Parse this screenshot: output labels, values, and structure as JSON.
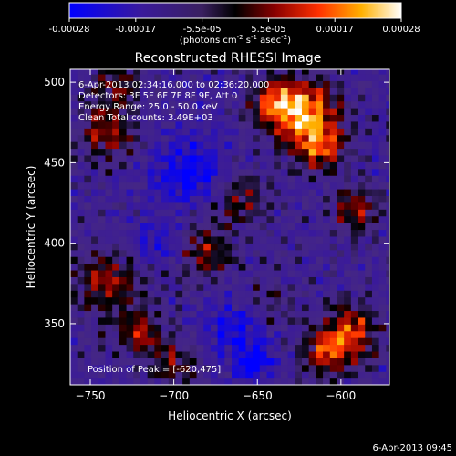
{
  "chart_data": {
    "type": "heatmap",
    "title": "Reconstructed RHESSI Image",
    "xlabel": "Heliocentric X (arcsec)",
    "ylabel": "Heliocentric Y (arcsec)",
    "xlim": [
      -762,
      -571
    ],
    "ylim": [
      312,
      508
    ],
    "x_ticks": [
      -750,
      -700,
      -650,
      -600
    ],
    "y_ticks": [
      350,
      400,
      450,
      500
    ],
    "colorbar": {
      "range": [
        -0.00028,
        0.00028
      ],
      "ticks": [
        "-0.00028",
        "-0.00017",
        "-5.5e-05",
        "5.5e-05",
        "0.00017",
        "0.00028"
      ],
      "unit_label": "(photons cm",
      "unit_sup1": "-2",
      "unit_mid": " s",
      "unit_sup2": "-1",
      "unit_mid2": " asec",
      "unit_sup3": "-2",
      "unit_end": ")"
    },
    "annotations": [
      "6-Apr-2013 02:34:16.000 to 02:36:20.000",
      "Detectors: 3F 5F 6F 7F 8F 9F, Att 0",
      "Energy Range: 25.0 - 50.0 keV",
      "Clean    Total counts: 3.49E+03"
    ],
    "peak_label": "Position of Peak = [-620,475]",
    "peak": [
      -620,
      475
    ],
    "blobs": [
      {
        "x": -622,
        "y": 482,
        "amp": 1.0,
        "w": 14
      },
      {
        "x": -612,
        "y": 460,
        "amp": 0.75,
        "w": 10
      },
      {
        "x": -640,
        "y": 488,
        "amp": 0.6,
        "w": 10
      },
      {
        "x": -740,
        "y": 470,
        "amp": 0.55,
        "w": 12
      },
      {
        "x": -735,
        "y": 500,
        "amp": 0.45,
        "w": 10
      },
      {
        "x": -590,
        "y": 420,
        "amp": 0.55,
        "w": 10
      },
      {
        "x": -595,
        "y": 345,
        "amp": 0.75,
        "w": 12
      },
      {
        "x": -610,
        "y": 330,
        "amp": 0.6,
        "w": 10
      },
      {
        "x": -740,
        "y": 375,
        "amp": 0.6,
        "w": 14
      },
      {
        "x": -720,
        "y": 345,
        "amp": 0.5,
        "w": 10
      },
      {
        "x": -700,
        "y": 325,
        "amp": 0.45,
        "w": 10
      },
      {
        "x": -680,
        "y": 395,
        "amp": 0.5,
        "w": 12
      },
      {
        "x": -660,
        "y": 430,
        "amp": 0.45,
        "w": 12
      },
      {
        "x": -645,
        "y": 360,
        "amp": 0.35,
        "w": 10
      }
    ],
    "troughs": [
      {
        "x": -690,
        "y": 445,
        "amp": 0.8,
        "w": 16
      },
      {
        "x": -660,
        "y": 345,
        "amp": 0.7,
        "w": 14
      },
      {
        "x": -652,
        "y": 325,
        "amp": 0.9,
        "w": 6
      },
      {
        "x": -710,
        "y": 400,
        "amp": 0.5,
        "w": 10
      }
    ]
  },
  "footer": {
    "timestamp": "6-Apr-2013 09:45"
  }
}
